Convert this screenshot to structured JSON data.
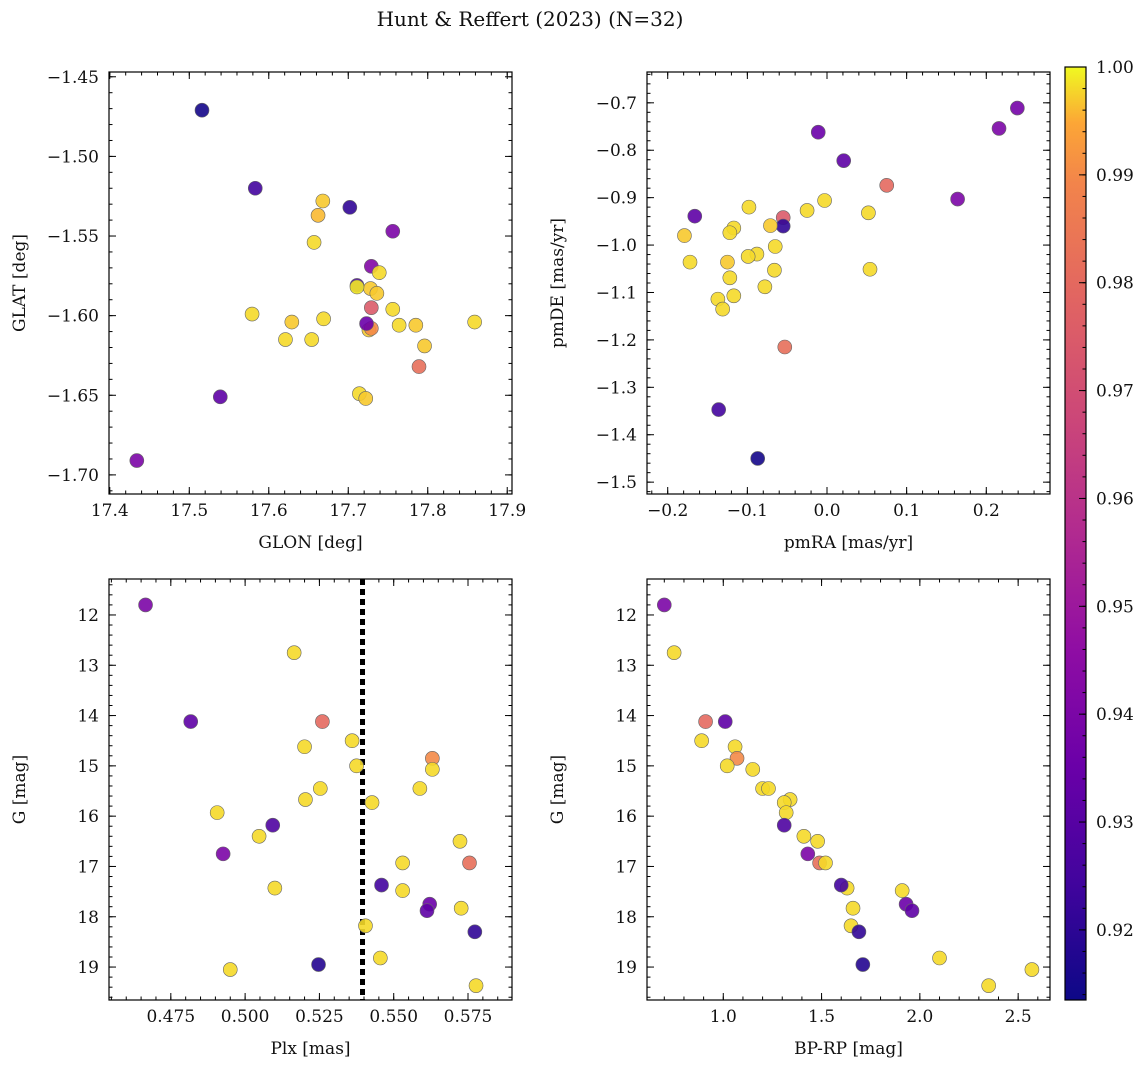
{
  "title": "Hunt & Reffert (2023) (N=32)",
  "colorbar": {
    "min": 0.9135,
    "max": 1.0,
    "ticks": [
      "0.92",
      "0.93",
      "0.94",
      "0.95",
      "0.96",
      "0.97",
      "0.98",
      "0.99",
      "1.00"
    ],
    "tick_values": [
      0.92,
      0.93,
      0.94,
      0.95,
      0.96,
      0.97,
      0.98,
      0.99,
      1.0
    ],
    "colormap": "plasma"
  },
  "chart_data": [
    {
      "type": "scatter",
      "id": "p1",
      "xlabel": "GLON [deg]",
      "ylabel": "GLAT [deg]",
      "xlim": [
        17.399,
        17.906
      ],
      "ylim": [
        -1.712,
        -1.447
      ],
      "xticks": [
        17.4,
        17.5,
        17.6,
        17.7,
        17.8,
        17.9
      ],
      "xticklabels": [
        "17.4",
        "17.5",
        "17.6",
        "17.7",
        "17.8",
        "17.9"
      ],
      "yticks": [
        -1.45,
        -1.5,
        -1.55,
        -1.6,
        -1.65,
        -1.7
      ],
      "yticklabels": [
        "−1.45",
        "−1.50",
        "−1.55",
        "−1.60",
        "−1.65",
        "−1.70"
      ],
      "x": [
        17.516,
        17.583,
        17.702,
        17.668,
        17.662,
        17.756,
        17.657,
        17.729,
        17.739,
        17.711,
        17.728,
        17.711,
        17.736,
        17.729,
        17.756,
        17.579,
        17.629,
        17.669,
        17.764,
        17.785,
        17.859,
        17.621,
        17.654,
        17.726,
        17.729,
        17.723,
        17.796,
        17.789,
        17.539,
        17.714,
        17.722,
        17.434
      ],
      "y": [
        -1.471,
        -1.52,
        -1.532,
        -1.528,
        -1.537,
        -1.547,
        -1.554,
        -1.569,
        -1.573,
        -1.581,
        -1.583,
        -1.582,
        -1.586,
        -1.595,
        -1.596,
        -1.599,
        -1.604,
        -1.602,
        -1.606,
        -1.606,
        -1.604,
        -1.615,
        -1.615,
        -1.609,
        -1.608,
        -1.605,
        -1.619,
        -1.632,
        -1.651,
        -1.649,
        -1.652,
        -1.691
      ],
      "c": [
        0.915,
        0.925,
        0.921,
        0.997,
        0.996,
        0.94,
        0.998,
        0.942,
        0.998,
        0.928,
        0.997,
        0.999,
        0.997,
        0.975,
        0.998,
        0.998,
        0.997,
        0.998,
        0.998,
        0.997,
        0.998,
        0.998,
        0.998,
        0.997,
        0.99,
        0.935,
        0.997,
        0.982,
        0.932,
        0.998,
        0.997,
        0.94
      ]
    },
    {
      "type": "scatter",
      "id": "p2",
      "xlabel": "pmRA [mas/yr]",
      "ylabel": "pmDE [mas/yr]",
      "xlim": [
        -0.226,
        0.28
      ],
      "ylim": [
        -1.525,
        -0.635
      ],
      "xticks": [
        -0.2,
        -0.1,
        0,
        0.1,
        0.2
      ],
      "xticklabels": [
        "−0.2",
        "−0.1",
        "0.0",
        "0.1",
        "0.2"
      ],
      "yticks": [
        -0.7,
        -0.8,
        -0.9,
        -1.0,
        -1.1,
        -1.2,
        -1.3,
        -1.4,
        -1.5
      ],
      "yticklabels": [
        "−0.7",
        "−0.8",
        "−0.9",
        "−1.0",
        "−1.1",
        "−1.2",
        "−1.3",
        "−1.4",
        "−1.5"
      ],
      "x": [
        0.239,
        0.216,
        -0.011,
        0.021,
        0.075,
        0.164,
        -0.166,
        0.052,
        -0.098,
        -0.025,
        -0.003,
        -0.179,
        -0.055,
        -0.055,
        -0.071,
        -0.117,
        -0.122,
        -0.065,
        -0.088,
        -0.099,
        -0.172,
        -0.125,
        -0.066,
        0.054,
        -0.122,
        -0.117,
        -0.078,
        -0.137,
        -0.131,
        -0.053,
        -0.136,
        -0.087
      ],
      "y": [
        -0.711,
        -0.754,
        -0.762,
        -0.822,
        -0.874,
        -0.903,
        -0.939,
        -0.932,
        -0.92,
        -0.927,
        -0.906,
        -0.98,
        -0.942,
        -0.96,
        -0.959,
        -0.964,
        -0.974,
        -1.003,
        -1.019,
        -1.024,
        -1.036,
        -1.036,
        -1.053,
        -1.051,
        -1.069,
        -1.107,
        -1.088,
        -1.114,
        -1.135,
        -1.215,
        -1.347,
        -1.45
      ],
      "c": [
        0.938,
        0.94,
        0.935,
        0.932,
        0.98,
        0.94,
        0.932,
        0.998,
        0.998,
        0.998,
        0.998,
        0.997,
        0.975,
        0.921,
        0.997,
        0.998,
        0.998,
        0.998,
        0.998,
        0.998,
        0.998,
        0.997,
        0.998,
        0.998,
        0.998,
        0.998,
        0.998,
        0.998,
        0.998,
        0.982,
        0.925,
        0.915
      ]
    },
    {
      "type": "scatter",
      "id": "p3",
      "xlabel": "Plx [mas]",
      "ylabel": "G [mag]",
      "invert_y": true,
      "xlim": [
        0.4542,
        0.5898
      ],
      "ylim": [
        19.655,
        11.285
      ],
      "vline": 0.5395,
      "xticks": [
        0.475,
        0.5,
        0.525,
        0.55,
        0.575
      ],
      "xticklabels": [
        "0.475",
        "0.500",
        "0.525",
        "0.550",
        "0.575"
      ],
      "yticks": [
        12,
        13,
        14,
        15,
        16,
        17,
        18,
        19
      ],
      "yticklabels": [
        "12",
        "13",
        "14",
        "15",
        "16",
        "17",
        "18",
        "19"
      ],
      "x": [
        0.4665,
        0.5165,
        0.4817,
        0.526,
        0.52,
        0.536,
        0.5375,
        0.563,
        0.563,
        0.5203,
        0.5253,
        0.5588,
        0.5427,
        0.4906,
        0.5047,
        0.5093,
        0.4926,
        0.5723,
        0.553,
        0.5755,
        0.51,
        0.553,
        0.5459,
        0.5621,
        0.5612,
        0.5727,
        0.5405,
        0.5773,
        0.5247,
        0.5455,
        0.495,
        0.5777
      ],
      "y": [
        11.8,
        12.75,
        14.12,
        14.12,
        14.62,
        14.5,
        15.0,
        14.85,
        15.07,
        15.67,
        15.45,
        15.45,
        15.73,
        15.93,
        16.4,
        16.18,
        16.75,
        16.5,
        16.93,
        16.93,
        17.43,
        17.48,
        17.37,
        17.75,
        17.88,
        17.83,
        18.18,
        18.3,
        18.95,
        18.82,
        19.05,
        19.37
      ],
      "c": [
        0.94,
        0.998,
        0.932,
        0.98,
        0.998,
        0.998,
        0.998,
        0.99,
        0.998,
        0.998,
        0.998,
        0.998,
        0.998,
        0.998,
        0.998,
        0.928,
        0.94,
        0.998,
        0.998,
        0.982,
        0.998,
        0.998,
        0.925,
        0.935,
        0.932,
        0.998,
        0.998,
        0.921,
        0.918,
        0.998,
        0.998,
        0.998
      ]
    },
    {
      "type": "scatter",
      "id": "p4",
      "xlabel": "BP-RP [mag]",
      "ylabel": "G [mag]",
      "invert_y": true,
      "xlim": [
        0.612,
        2.662
      ],
      "ylim": [
        19.655,
        11.285
      ],
      "xticks": [
        1.0,
        1.5,
        2.0,
        2.5
      ],
      "xticklabels": [
        "1.0",
        "1.5",
        "2.0",
        "2.5"
      ],
      "yticks": [
        12,
        13,
        14,
        15,
        16,
        17,
        18,
        19
      ],
      "yticklabels": [
        "12",
        "13",
        "14",
        "15",
        "16",
        "17",
        "18",
        "19"
      ],
      "x": [
        0.7,
        0.75,
        0.91,
        1.01,
        0.89,
        1.06,
        1.07,
        1.02,
        1.15,
        1.2,
        1.23,
        1.34,
        1.31,
        1.32,
        1.31,
        1.48,
        1.41,
        1.43,
        1.49,
        1.52,
        1.63,
        1.6,
        1.91,
        1.93,
        1.96,
        1.66,
        1.65,
        1.69,
        1.71,
        2.1,
        2.35,
        2.57
      ],
      "y": [
        11.8,
        12.75,
        14.12,
        14.12,
        14.5,
        14.62,
        14.85,
        15.0,
        15.07,
        15.45,
        15.45,
        15.67,
        15.73,
        15.93,
        16.18,
        16.5,
        16.4,
        16.75,
        16.93,
        16.93,
        17.43,
        17.37,
        17.48,
        17.75,
        17.88,
        17.83,
        18.18,
        18.3,
        18.95,
        18.82,
        19.37,
        19.05
      ],
      "c": [
        0.94,
        0.998,
        0.98,
        0.932,
        0.998,
        0.998,
        0.99,
        0.998,
        0.998,
        0.998,
        0.998,
        0.998,
        0.998,
        0.998,
        0.928,
        0.998,
        0.998,
        0.94,
        0.982,
        0.998,
        0.998,
        0.925,
        0.998,
        0.935,
        0.932,
        0.998,
        0.998,
        0.921,
        0.918,
        0.998,
        0.998,
        0.998
      ]
    }
  ]
}
